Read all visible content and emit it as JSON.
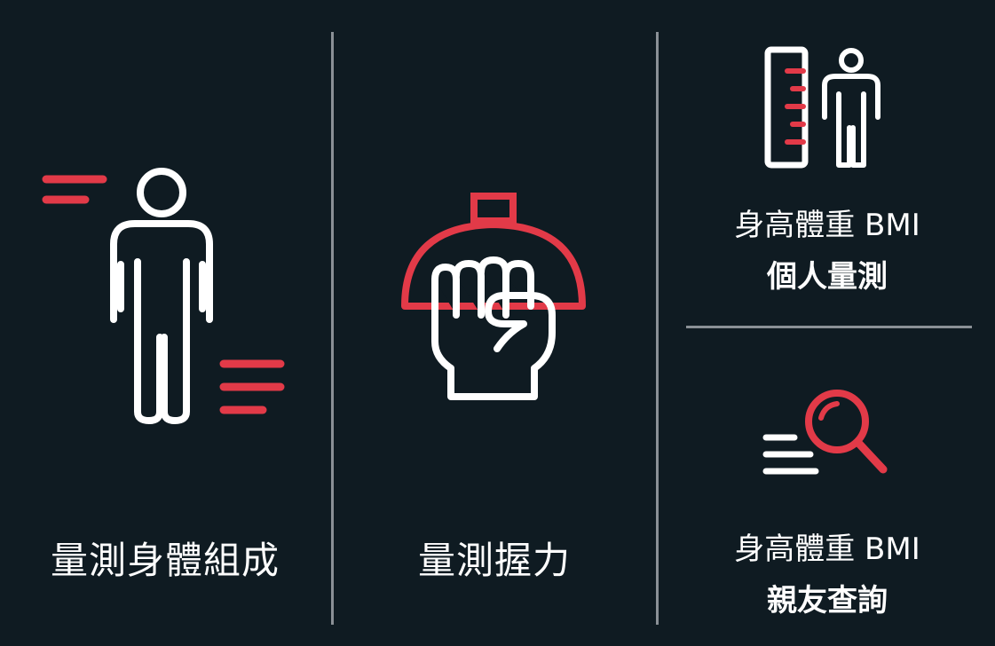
{
  "tiles": {
    "body_composition": {
      "label": "量測身體組成",
      "icon": "person-motion-icon"
    },
    "grip_strength": {
      "label": "量測握力",
      "icon": "fist-grip-icon"
    },
    "personal_bmi": {
      "line1": "身高體重 BMI",
      "line2": "個人量測",
      "icon": "ruler-person-icon"
    },
    "friend_bmi": {
      "line1": "身高體重 BMI",
      "line2": "親友查詢",
      "icon": "search-magnifier-icon"
    }
  },
  "colors": {
    "background": "#0f1b22",
    "accent": "#e23a48",
    "foreground": "#ffffff",
    "divider": "#8a9096"
  }
}
